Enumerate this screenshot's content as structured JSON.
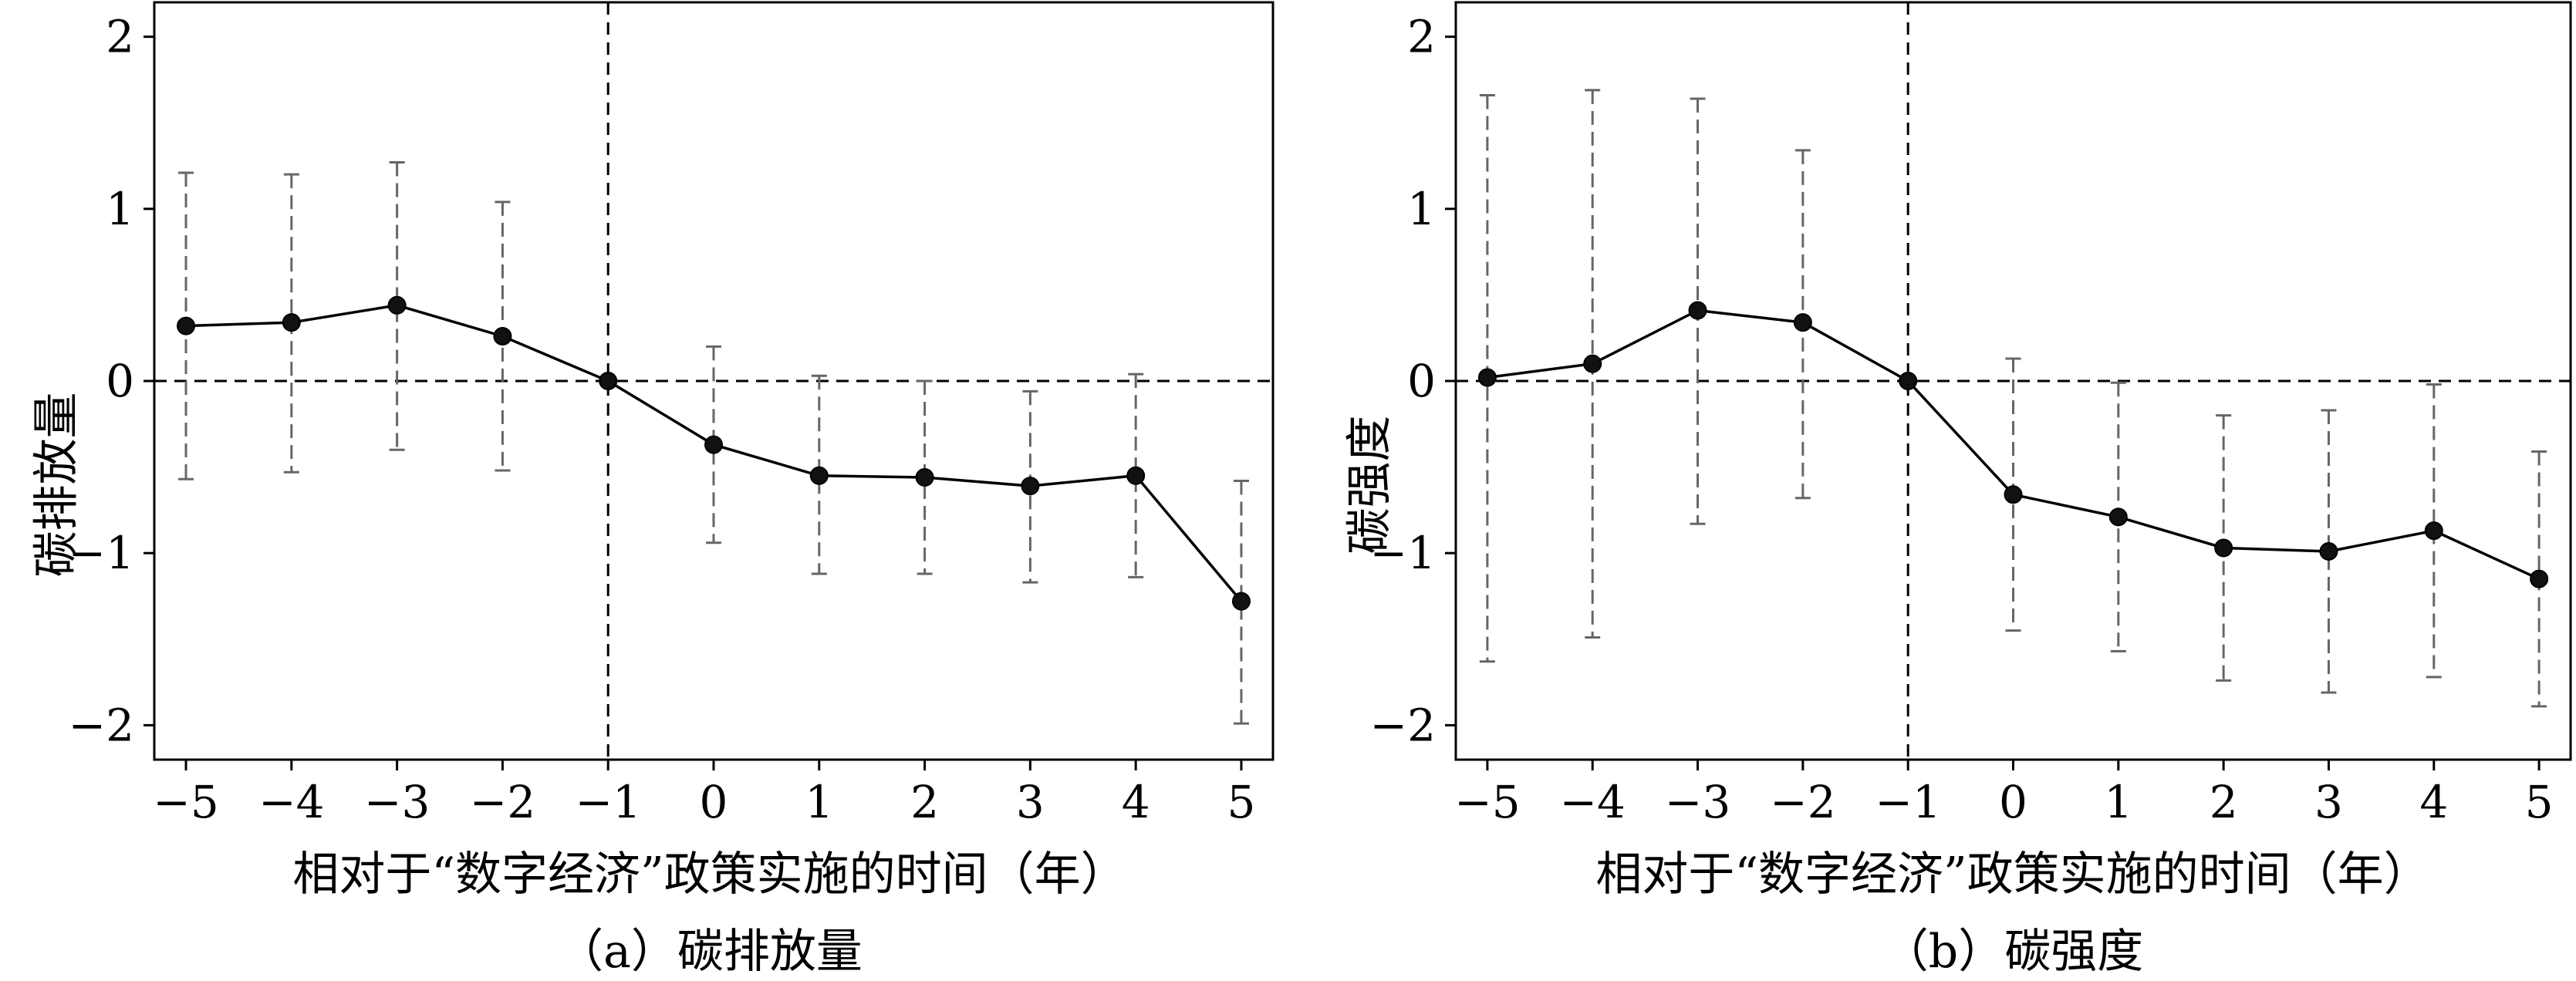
{
  "chart_data": [
    {
      "type": "line",
      "caption": "（a）碳排放量",
      "xlabel": "相对于“数字经济”政策实施的时间（年）",
      "ylabel": "碳排放量",
      "x": [
        -5,
        -4,
        -3,
        -2,
        -1,
        0,
        1,
        2,
        3,
        4,
        5
      ],
      "x_tick_labels": [
        "−5",
        "−4",
        "−3",
        "−2",
        "−1",
        "0",
        "1",
        "2",
        "3",
        "4",
        "5"
      ],
      "y_ticks": [
        -2,
        -1,
        0,
        1,
        2
      ],
      "y_tick_labels": [
        "−2",
        "−1",
        "0",
        "1",
        "2"
      ],
      "xlim": [
        -5.3,
        5.3
      ],
      "ylim": [
        -2.2,
        2.2
      ],
      "reference_lines": {
        "x": -1,
        "y": 0
      },
      "series": [
        {
          "values": [
            0.32,
            0.34,
            0.44,
            0.26,
            0.0,
            -0.37,
            -0.55,
            -0.56,
            -0.61,
            -0.55,
            -1.28
          ],
          "ci_low": [
            -0.57,
            -0.53,
            -0.4,
            -0.52,
            null,
            -0.94,
            -1.12,
            -1.12,
            -1.17,
            -1.14,
            -1.99
          ],
          "ci_high": [
            1.21,
            1.2,
            1.27,
            1.04,
            null,
            0.2,
            0.03,
            0.0,
            -0.06,
            0.04,
            -0.58
          ]
        }
      ]
    },
    {
      "type": "line",
      "caption": "（b）碳强度",
      "xlabel": "相对于“数字经济”政策实施的时间（年）",
      "ylabel": "碳强度",
      "x": [
        -5,
        -4,
        -3,
        -2,
        -1,
        0,
        1,
        2,
        3,
        4,
        5
      ],
      "x_tick_labels": [
        "−5",
        "−4",
        "−3",
        "−2",
        "−1",
        "0",
        "1",
        "2",
        "3",
        "4",
        "5"
      ],
      "y_ticks": [
        -2,
        -1,
        0,
        1,
        2
      ],
      "y_tick_labels": [
        "−2",
        "−1",
        "0",
        "1",
        "2"
      ],
      "xlim": [
        -5.3,
        5.3
      ],
      "ylim": [
        -2.2,
        2.2
      ],
      "reference_lines": {
        "x": -1,
        "y": 0
      },
      "series": [
        {
          "values": [
            0.02,
            0.1,
            0.41,
            0.34,
            0.0,
            -0.66,
            -0.79,
            -0.97,
            -0.99,
            -0.87,
            -1.15
          ],
          "ci_low": [
            -1.63,
            -1.49,
            -0.83,
            -0.68,
            null,
            -1.45,
            -1.57,
            -1.74,
            -1.81,
            -1.72,
            -1.89
          ],
          "ci_high": [
            1.66,
            1.69,
            1.64,
            1.34,
            null,
            0.13,
            -0.01,
            -0.2,
            -0.17,
            -0.02,
            -0.41
          ]
        }
      ]
    }
  ]
}
